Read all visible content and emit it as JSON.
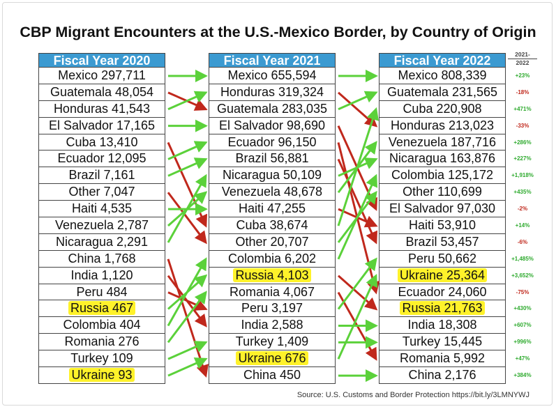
{
  "title": "CBP Migrant Encounters at the U.S.-Mexico Border, by Country of Origin",
  "columns": [
    {
      "header": "Fiscal Year 2020",
      "rows": [
        {
          "text": "Mexico 297,711"
        },
        {
          "text": "Guatemala 48,054"
        },
        {
          "text": "Honduras 41,543"
        },
        {
          "text": "El Salvador 17,165"
        },
        {
          "text": "Cuba 13,410"
        },
        {
          "text": "Ecuador 12,095"
        },
        {
          "text": "Brazil 7,161"
        },
        {
          "text": "Other 7,047"
        },
        {
          "text": "Haiti 4,535"
        },
        {
          "text": "Venezuela 2,787"
        },
        {
          "text": "Nicaragua 2,291"
        },
        {
          "text": "China 1,768"
        },
        {
          "text": "India 1,120"
        },
        {
          "text": "Peru 484"
        },
        {
          "text": "Russia 467",
          "highlight": true
        },
        {
          "text": "Colombia 404"
        },
        {
          "text": "Romania 276"
        },
        {
          "text": "Turkey 109"
        },
        {
          "text": "Ukraine 93",
          "highlight": true
        }
      ]
    },
    {
      "header": "Fiscal Year 2021",
      "rows": [
        {
          "text": "Mexico 655,594"
        },
        {
          "text": "Honduras 319,324"
        },
        {
          "text": "Guatemala 283,035"
        },
        {
          "text": "El Salvador 98,690"
        },
        {
          "text": "Ecuador 96,150"
        },
        {
          "text": "Brazil 56,881"
        },
        {
          "text": "Nicaragua 50,109"
        },
        {
          "text": "Venezuela 48,678"
        },
        {
          "text": "Haiti 47,255"
        },
        {
          "text": "Cuba 38,674"
        },
        {
          "text": "Other 20,707"
        },
        {
          "text": "Colombia 6,202"
        },
        {
          "text": "Russia 4,103",
          "highlight": true
        },
        {
          "text": "Romania 4,067"
        },
        {
          "text": "Peru 3,197"
        },
        {
          "text": "India 2,588"
        },
        {
          "text": "Turkey 1,409"
        },
        {
          "text": "Ukraine 676",
          "highlight": true
        },
        {
          "text": "China 450"
        }
      ]
    },
    {
      "header": "Fiscal Year 2022",
      "rows": [
        {
          "text": "Mexico 808,339"
        },
        {
          "text": "Guatemala 231,565"
        },
        {
          "text": "Cuba 220,908"
        },
        {
          "text": "Honduras 213,023"
        },
        {
          "text": "Venezuela 187,716"
        },
        {
          "text": "Nicaragua 163,876"
        },
        {
          "text": "Colombia 125,172"
        },
        {
          "text": "Other 110,699"
        },
        {
          "text": "El Salvador 97,030"
        },
        {
          "text": "Haiti 53,910"
        },
        {
          "text": "Brazil 53,457"
        },
        {
          "text": "Peru 50,662"
        },
        {
          "text": "Ukraine 25,364",
          "highlight": true
        },
        {
          "text": "Ecuador 24,060"
        },
        {
          "text": "Russia 21,763",
          "highlight": true
        },
        {
          "text": "India 18,308"
        },
        {
          "text": "Turkey 15,445"
        },
        {
          "text": "Romania 5,992"
        },
        {
          "text": "China 2,176"
        }
      ]
    }
  ],
  "change_header": [
    "2021-",
    "2022"
  ],
  "changes": [
    "+23%",
    "-18%",
    "+471%",
    "-33%",
    "+286%",
    "+227%",
    "+1,918%",
    "+435%",
    "-2%",
    "+14%",
    "-6%",
    "+1,485%",
    "+3,652%",
    "-75%",
    "+430%",
    "+607%",
    "+996%",
    "+47%",
    "+384%"
  ],
  "links_2020_2021": [
    [
      0,
      0
    ],
    [
      1,
      2
    ],
    [
      2,
      1
    ],
    [
      3,
      3
    ],
    [
      4,
      9
    ],
    [
      5,
      4
    ],
    [
      6,
      5
    ],
    [
      7,
      10
    ],
    [
      8,
      8
    ],
    [
      9,
      7
    ],
    [
      10,
      6
    ],
    [
      11,
      18
    ],
    [
      12,
      15
    ],
    [
      13,
      14
    ],
    [
      14,
      12
    ],
    [
      15,
      11
    ],
    [
      16,
      13
    ],
    [
      17,
      16
    ],
    [
      18,
      17
    ]
  ],
  "links_2021_2022": [
    [
      0,
      0
    ],
    [
      1,
      3
    ],
    [
      2,
      1
    ],
    [
      3,
      8
    ],
    [
      4,
      13
    ],
    [
      5,
      10
    ],
    [
      6,
      5
    ],
    [
      7,
      4
    ],
    [
      8,
      9
    ],
    [
      9,
      2
    ],
    [
      10,
      7
    ],
    [
      11,
      6
    ],
    [
      12,
      14
    ],
    [
      13,
      17
    ],
    [
      14,
      11
    ],
    [
      15,
      15
    ],
    [
      16,
      16
    ],
    [
      17,
      12
    ],
    [
      18,
      18
    ]
  ],
  "colors": {
    "up": "#5bd13a",
    "down": "#c0281c",
    "header": "#3b9ad1",
    "highlight": "#fff200"
  },
  "source": "Source: U.S. Customs and Border Protection https://bit.ly/3LMNYWJ"
}
